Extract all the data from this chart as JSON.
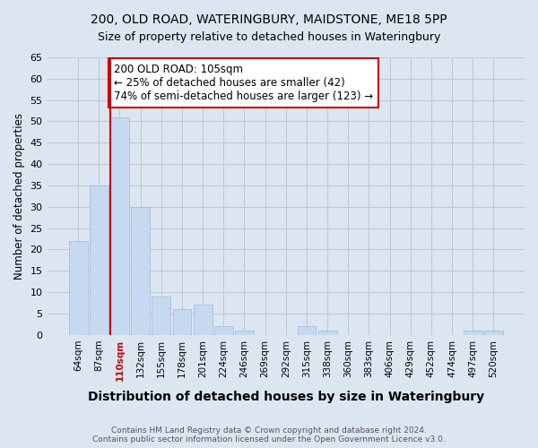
{
  "title1": "200, OLD ROAD, WATERINGBURY, MAIDSTONE, ME18 5PP",
  "title2": "Size of property relative to detached houses in Wateringbury",
  "xlabel": "Distribution of detached houses by size in Wateringbury",
  "ylabel": "Number of detached properties",
  "categories": [
    "64sqm",
    "87sqm",
    "110sqm",
    "132sqm",
    "155sqm",
    "178sqm",
    "201sqm",
    "224sqm",
    "246sqm",
    "269sqm",
    "292sqm",
    "315sqm",
    "338sqm",
    "360sqm",
    "383sqm",
    "406sqm",
    "429sqm",
    "452sqm",
    "474sqm",
    "497sqm",
    "520sqm"
  ],
  "values": [
    22,
    35,
    51,
    30,
    9,
    6,
    7,
    2,
    1,
    0,
    0,
    2,
    1,
    0,
    0,
    0,
    0,
    0,
    0,
    1,
    1
  ],
  "bar_color": "#c6d9f0",
  "bar_edge_color": "#a0b8d8",
  "vline_x": 1.55,
  "vline_color": "#cc0000",
  "vline_label_index": 2,
  "annotation_text": "200 OLD ROAD: 105sqm\n← 25% of detached houses are smaller (42)\n74% of semi-detached houses are larger (123) →",
  "annotation_box_color": "#ffffff",
  "annotation_box_edge_color": "#cc0000",
  "ylim": [
    0,
    65
  ],
  "yticks": [
    0,
    5,
    10,
    15,
    20,
    25,
    30,
    35,
    40,
    45,
    50,
    55,
    60,
    65
  ],
  "grid_color": "#c0c8d8",
  "bg_color": "#dce6f1",
  "footnote": "Contains HM Land Registry data © Crown copyright and database right 2024.\nContains public sector information licensed under the Open Government Licence v3.0."
}
